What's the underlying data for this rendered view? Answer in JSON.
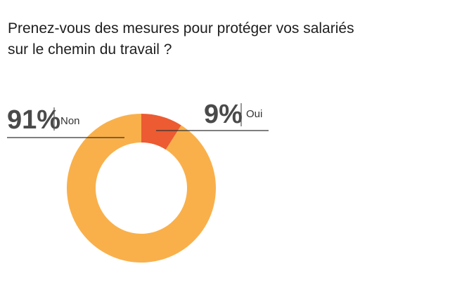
{
  "title_lines": [
    "Prenez-vous des mesures pour protéger vos salariés",
    "sur le chemin du travail ?"
  ],
  "colors": {
    "non": "#f9b04b",
    "oui": "#ec5b32",
    "leader": "#333333",
    "divider": "#555555"
  },
  "chart_data": {
    "type": "pie",
    "variant": "donut",
    "title": "Prenez-vous des mesures pour protéger vos salariés sur le chemin du travail ?",
    "slices": [
      {
        "label": "Oui",
        "value": 9,
        "value_label": "9%"
      },
      {
        "label": "Non",
        "value": 91,
        "value_label": "91%"
      }
    ],
    "legend": "none",
    "grid": false
  }
}
